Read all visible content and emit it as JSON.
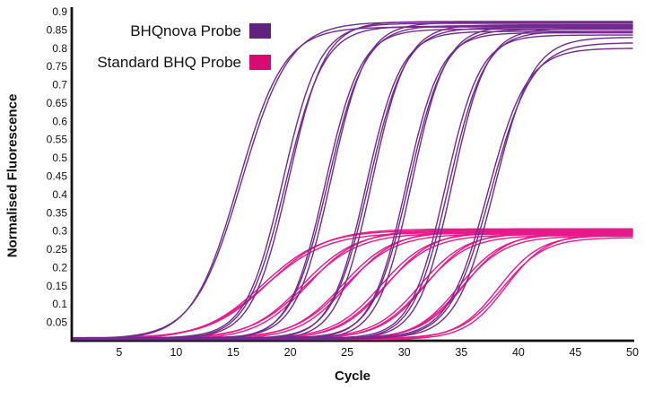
{
  "chart_data": {
    "type": "line",
    "title": "",
    "xlabel": "Cycle",
    "ylabel": "Normalised Fluorescence",
    "xlim": [
      1,
      50
    ],
    "ylim": [
      0,
      0.9
    ],
    "grid": false,
    "curve_model": "logistic",
    "baseline": 0.005,
    "xticks": [
      {
        "v": 5,
        "label": "5"
      },
      {
        "v": 10,
        "label": "10"
      },
      {
        "v": 15,
        "label": "15"
      },
      {
        "v": 20,
        "label": "20"
      },
      {
        "v": 25,
        "label": "25"
      },
      {
        "v": 30,
        "label": "30"
      },
      {
        "v": 35,
        "label": "35"
      },
      {
        "v": 40,
        "label": "40"
      },
      {
        "v": 45,
        "label": "45"
      },
      {
        "v": 50,
        "label": "50"
      }
    ],
    "yticks": [
      {
        "v": 0.9,
        "label": "0.9"
      },
      {
        "v": 0.85,
        "label": "0.85"
      },
      {
        "v": 0.8,
        "label": "0.8"
      },
      {
        "v": 0.75,
        "label": "0.75"
      },
      {
        "v": 0.7,
        "label": "0.7"
      },
      {
        "v": 0.65,
        "label": "0.65"
      },
      {
        "v": 0.6,
        "label": "0.6"
      },
      {
        "v": 0.55,
        "label": "0.55"
      },
      {
        "v": 0.5,
        "label": "0.5"
      },
      {
        "v": 0.45,
        "label": "0.45"
      },
      {
        "v": 0.4,
        "label": "0.4"
      },
      {
        "v": 0.35,
        "label": "0.35"
      },
      {
        "v": 0.3,
        "label": "0.3"
      },
      {
        "v": 0.25,
        "label": "0.25"
      },
      {
        "v": 0.2,
        "label": "0.2"
      },
      {
        "v": 0.15,
        "label": "0.15"
      },
      {
        "v": 0.1,
        "label": "0.1"
      },
      {
        "v": 0.05,
        "label": "0.05"
      }
    ],
    "legend": {
      "position": "top-left-inside",
      "entries": [
        {
          "label": "BHQnova Probe",
          "color": "#5F2280"
        },
        {
          "label": "Standard BHQ Probe",
          "color": "#DB0A72"
        }
      ]
    },
    "series": [
      {
        "name": "BHQnova Probe",
        "color": "#722B8C",
        "curves": [
          {
            "mid": 15.45,
            "k": 0.5,
            "plateau": 0.858
          },
          {
            "mid": 15.75,
            "k": 0.48,
            "plateau": 0.872
          },
          {
            "mid": 19.35,
            "k": 0.62,
            "plateau": 0.868
          },
          {
            "mid": 19.6,
            "k": 0.6,
            "plateau": 0.86
          },
          {
            "mid": 19.85,
            "k": 0.63,
            "plateau": 0.873
          },
          {
            "mid": 23.05,
            "k": 0.64,
            "plateau": 0.852
          },
          {
            "mid": 23.3,
            "k": 0.62,
            "plateau": 0.862
          },
          {
            "mid": 23.55,
            "k": 0.65,
            "plateau": 0.87
          },
          {
            "mid": 26.65,
            "k": 0.65,
            "plateau": 0.846
          },
          {
            "mid": 26.9,
            "k": 0.63,
            "plateau": 0.856
          },
          {
            "mid": 27.15,
            "k": 0.66,
            "plateau": 0.864
          },
          {
            "mid": 30.15,
            "k": 0.66,
            "plateau": 0.842
          },
          {
            "mid": 30.4,
            "k": 0.64,
            "plateau": 0.852
          },
          {
            "mid": 30.65,
            "k": 0.67,
            "plateau": 0.86
          },
          {
            "mid": 33.6,
            "k": 0.66,
            "plateau": 0.836
          },
          {
            "mid": 33.9,
            "k": 0.64,
            "plateau": 0.846
          },
          {
            "mid": 34.2,
            "k": 0.67,
            "plateau": 0.854
          },
          {
            "mid": 37.3,
            "k": 0.58,
            "plateau": 0.8
          },
          {
            "mid": 37.6,
            "k": 0.56,
            "plateau": 0.815
          },
          {
            "mid": 37.9,
            "k": 0.6,
            "plateau": 0.83
          }
        ]
      },
      {
        "name": "Standard BHQ Probe",
        "color": "#E9198A",
        "curves": [
          {
            "mid": 17.55,
            "k": 0.38,
            "plateau": 0.302
          },
          {
            "mid": 17.8,
            "k": 0.37,
            "plateau": 0.296
          },
          {
            "mid": 18.05,
            "k": 0.39,
            "plateau": 0.306
          },
          {
            "mid": 21.05,
            "k": 0.43,
            "plateau": 0.3
          },
          {
            "mid": 21.3,
            "k": 0.42,
            "plateau": 0.294
          },
          {
            "mid": 21.55,
            "k": 0.44,
            "plateau": 0.304
          },
          {
            "mid": 24.55,
            "k": 0.46,
            "plateau": 0.298
          },
          {
            "mid": 24.8,
            "k": 0.45,
            "plateau": 0.292
          },
          {
            "mid": 25.05,
            "k": 0.47,
            "plateau": 0.302
          },
          {
            "mid": 27.95,
            "k": 0.48,
            "plateau": 0.296
          },
          {
            "mid": 28.2,
            "k": 0.47,
            "plateau": 0.29
          },
          {
            "mid": 28.45,
            "k": 0.49,
            "plateau": 0.3
          },
          {
            "mid": 31.35,
            "k": 0.5,
            "plateau": 0.294
          },
          {
            "mid": 31.6,
            "k": 0.49,
            "plateau": 0.288
          },
          {
            "mid": 31.85,
            "k": 0.51,
            "plateau": 0.298
          },
          {
            "mid": 34.75,
            "k": 0.52,
            "plateau": 0.292
          },
          {
            "mid": 35.0,
            "k": 0.51,
            "plateau": 0.286
          },
          {
            "mid": 35.25,
            "k": 0.53,
            "plateau": 0.296
          },
          {
            "mid": 38.3,
            "k": 0.55,
            "plateau": 0.288
          },
          {
            "mid": 38.6,
            "k": 0.54,
            "plateau": 0.282
          },
          {
            "mid": 38.9,
            "k": 0.56,
            "plateau": 0.292
          }
        ]
      }
    ]
  }
}
